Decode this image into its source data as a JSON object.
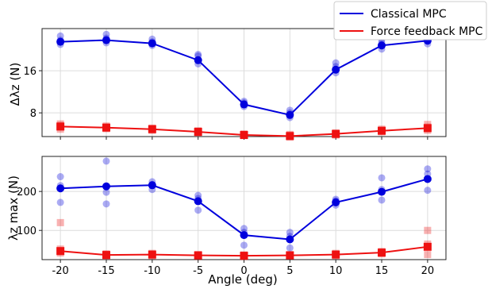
{
  "chart_data": [
    {
      "type": "line",
      "panel": "top",
      "ylabel": "Δλz (N)",
      "xlabel": "",
      "x": [
        -20,
        -15,
        -10,
        -5,
        0,
        5,
        10,
        15,
        20
      ],
      "xlim": [
        -22,
        22
      ],
      "ylim": [
        3.5,
        24
      ],
      "yticks": [
        8,
        16
      ],
      "grid": true,
      "series": [
        {
          "name": "Classical MPC",
          "color": "#0000dd",
          "marker": "circle",
          "values": [
            21.5,
            21.8,
            21.2,
            18.0,
            9.6,
            7.6,
            16.2,
            20.8,
            21.7
          ],
          "trials": [
            [
              22.6,
              21.0,
              21.8
            ],
            [
              22.9,
              21.3,
              22.2
            ],
            [
              22.0,
              20.8,
              21.5
            ],
            [
              18.8,
              17.3,
              19.1
            ],
            [
              10.2,
              9.2,
              9.9
            ],
            [
              8.5,
              7.1,
              8.0
            ],
            [
              17.5,
              15.6,
              16.8
            ],
            [
              21.9,
              20.1,
              21.3
            ],
            [
              22.7,
              21.1,
              22.1
            ]
          ]
        },
        {
          "name": "Force feedback MPC",
          "color": "#ee1111",
          "marker": "square",
          "values": [
            5.4,
            5.2,
            4.9,
            4.4,
            3.8,
            3.6,
            4.0,
            4.6,
            5.1
          ],
          "trials": [
            [
              5.9,
              4.9,
              5.6
            ],
            [
              5.5,
              5.0,
              5.3
            ],
            [
              5.1,
              4.7,
              5.0
            ],
            [
              4.6,
              4.2,
              4.5
            ],
            [
              4.0,
              3.7,
              3.9
            ],
            [
              3.9,
              3.4,
              3.7
            ],
            [
              4.2,
              3.8,
              4.1
            ],
            [
              4.9,
              4.4,
              4.7
            ],
            [
              5.8,
              4.7,
              5.3
            ]
          ]
        }
      ]
    },
    {
      "type": "line",
      "panel": "bottom",
      "ylabel": "λz max (N)",
      "xlabel": "Angle (deg)",
      "x": [
        -20,
        -15,
        -10,
        -5,
        0,
        5,
        10,
        15,
        20
      ],
      "xlim": [
        -22,
        22
      ],
      "ylim": [
        25,
        290
      ],
      "yticks": [
        100,
        200
      ],
      "xticks": [
        -20,
        -15,
        -10,
        -5,
        0,
        5,
        10,
        15,
        20
      ],
      "grid": true,
      "series": [
        {
          "name": "Classical MPC",
          "color": "#0000dd",
          "marker": "circle",
          "values": [
            208,
            213,
            216,
            175,
            88,
            77,
            172,
            199,
            232
          ],
          "trials": [
            [
              238,
              172,
              215
            ],
            [
              278,
              168,
              198
            ],
            [
              225,
              205,
              218
            ],
            [
              190,
              152,
              182
            ],
            [
              105,
              62,
              95
            ],
            [
              95,
              55,
              85
            ],
            [
              180,
              165,
              176
            ],
            [
              235,
              178,
              205
            ],
            [
              258,
              203,
              245
            ]
          ]
        },
        {
          "name": "Force feedback MPC",
          "color": "#ee1111",
          "marker": "square",
          "values": [
            47,
            37,
            38,
            36,
            35,
            36,
            38,
            43,
            58
          ],
          "trials": [
            [
              120,
              42,
              52
            ],
            [
              40,
              34,
              38
            ],
            [
              41,
              35,
              39
            ],
            [
              38,
              33,
              36
            ],
            [
              37,
              33,
              35
            ],
            [
              38,
              34,
              36
            ],
            [
              41,
              35,
              39
            ],
            [
              46,
              40,
              44
            ],
            [
              100,
              38,
              65
            ]
          ]
        }
      ]
    }
  ],
  "legend": {
    "placement": "top-right",
    "items": [
      "Classical MPC",
      "Force feedback MPC"
    ]
  }
}
